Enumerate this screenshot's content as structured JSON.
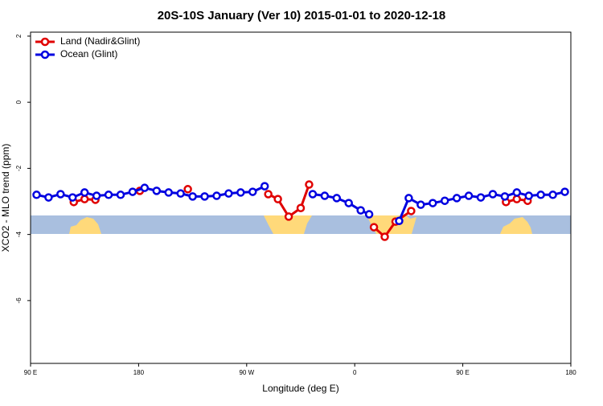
{
  "chart_data": {
    "type": "line",
    "title": "20S-10S January (Ver 10)   2015-01-01 to 2020-12-18",
    "x_label": "Longitude (deg E)",
    "y_label": "XCO2 - MLO trend (ppm)",
    "xlim": [
      90,
      540
    ],
    "xticks": [
      {
        "value": 90,
        "label": "90 E"
      },
      {
        "value": 180,
        "label": "180"
      },
      {
        "value": 270,
        "label": "90 W"
      },
      {
        "value": 360,
        "label": "0"
      },
      {
        "value": 450,
        "label": "90 E"
      },
      {
        "value": 540,
        "label": "180"
      }
    ],
    "ylim": [
      -7.9,
      2.12
    ],
    "yticks": [
      2,
      0,
      -2,
      -4,
      -6
    ],
    "legend": "top-left",
    "series": [
      {
        "name": "Land (Nadir&Glint)",
        "color": "#e00000",
        "x": [
          126,
          135,
          144,
          null,
          181,
          null,
          221,
          null,
          288,
          296,
          305,
          315,
          322,
          null,
          376,
          385,
          394,
          407,
          null,
          486,
          495,
          504
        ],
        "values": [
          -3.02,
          -2.93,
          -2.95,
          null,
          -2.68,
          null,
          -2.63,
          null,
          -2.78,
          -2.93,
          -3.46,
          -3.2,
          -2.49,
          null,
          -3.78,
          -4.07,
          -3.61,
          -3.29,
          null,
          -3.02,
          -2.93,
          -2.98
        ]
      },
      {
        "name": "Ocean (Glint)",
        "color": "#0000e0",
        "x": [
          95,
          105,
          115,
          125,
          135,
          145,
          155,
          165,
          175,
          185,
          195,
          205,
          215,
          225,
          235,
          245,
          255,
          265,
          275,
          285,
          null,
          325,
          335,
          345,
          355,
          365,
          372,
          null,
          397,
          405,
          415,
          425,
          435,
          445,
          455,
          465,
          475,
          485,
          495,
          505,
          515,
          525,
          535
        ],
        "values": [
          -2.8,
          -2.88,
          -2.78,
          -2.88,
          -2.73,
          -2.83,
          -2.8,
          -2.8,
          -2.71,
          -2.59,
          -2.68,
          -2.73,
          -2.76,
          -2.85,
          -2.85,
          -2.83,
          -2.76,
          -2.73,
          -2.71,
          -2.54,
          null,
          -2.78,
          -2.83,
          -2.9,
          -3.05,
          -3.27,
          -3.39,
          null,
          -3.59,
          -2.9,
          -3.1,
          -3.05,
          -2.98,
          -2.9,
          -2.83,
          -2.88,
          -2.78,
          -2.85,
          -2.73,
          -2.83,
          -2.8,
          -2.8,
          -2.71
        ]
      }
    ]
  }
}
